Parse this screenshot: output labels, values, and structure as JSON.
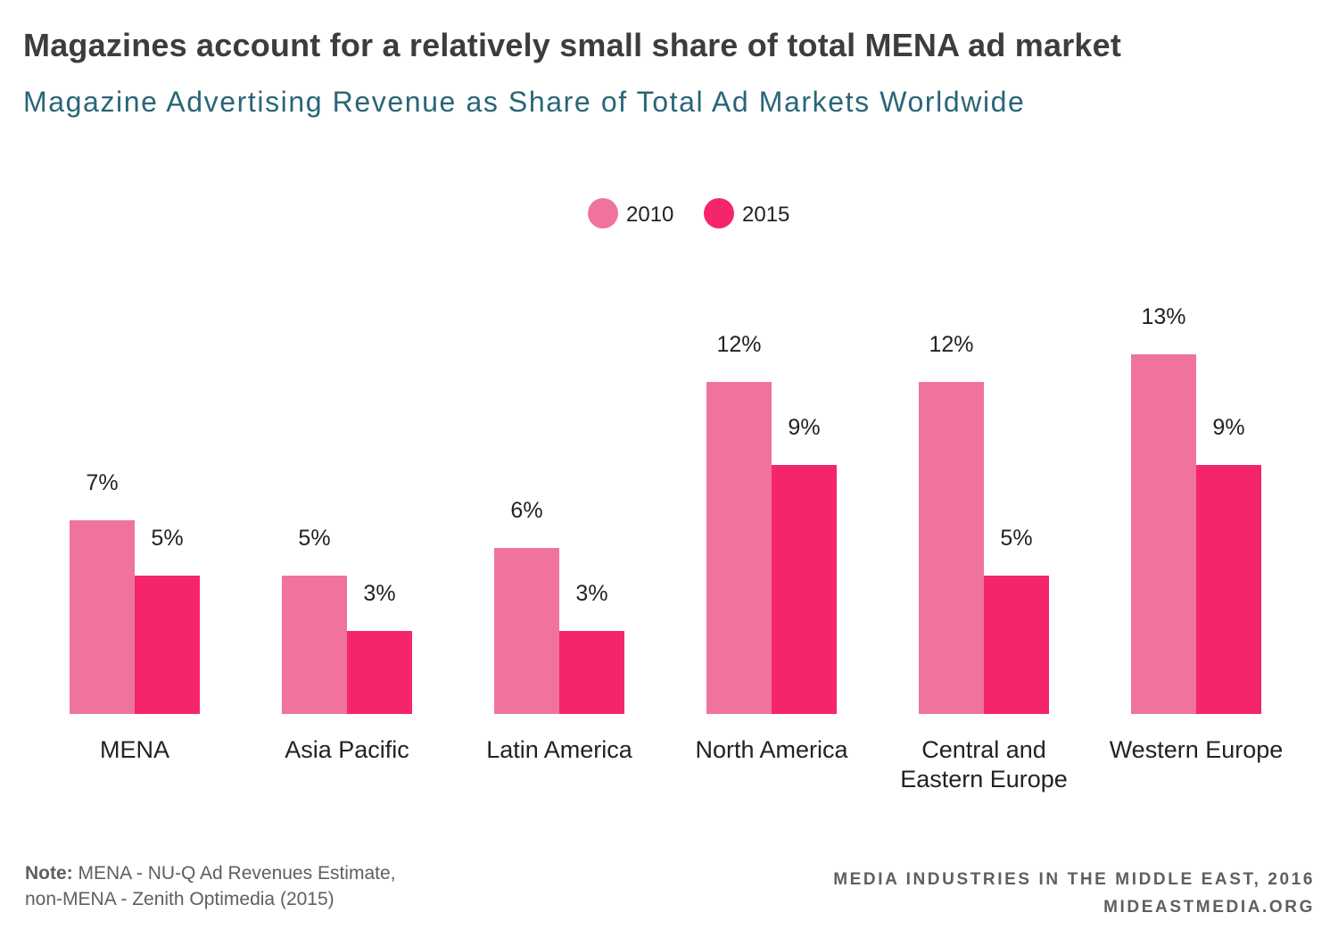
{
  "header": {
    "title": "Magazines account for a relatively small share of total MENA ad market",
    "subtitle": "Magazine Advertising Revenue as Share of Total Ad Markets Worldwide"
  },
  "chart_data": {
    "type": "bar",
    "categories": [
      [
        "MENA"
      ],
      [
        "Asia Pacific"
      ],
      [
        "Latin America"
      ],
      [
        "North America"
      ],
      [
        "Central and",
        "Eastern Europe"
      ],
      [
        "Western Europe"
      ]
    ],
    "series": [
      {
        "name": "2010",
        "color": "#f0739b",
        "values": [
          7,
          5,
          6,
          12,
          12,
          13
        ],
        "labels": [
          "7%",
          "5%",
          "6%",
          "12%",
          "12%",
          "13%"
        ]
      },
      {
        "name": "2015",
        "color": "#f5256c",
        "values": [
          5,
          3,
          3,
          9,
          5,
          9
        ],
        "labels": [
          "5%",
          "3%",
          "3%",
          "9%",
          "5%",
          "9%"
        ]
      }
    ],
    "legend_position": "top-center",
    "ylim": [
      0,
      13
    ],
    "grid": false
  },
  "footer": {
    "note_label": "Note:",
    "note_line1": "MENA - NU-Q Ad Revenues Estimate,",
    "note_line2": "non-MENA - Zenith Optimedia (2015)",
    "credit_line1": "MEDIA INDUSTRIES IN THE MIDDLE EAST, 2016",
    "credit_line2": "MIDEASTMEDIA.ORG"
  }
}
